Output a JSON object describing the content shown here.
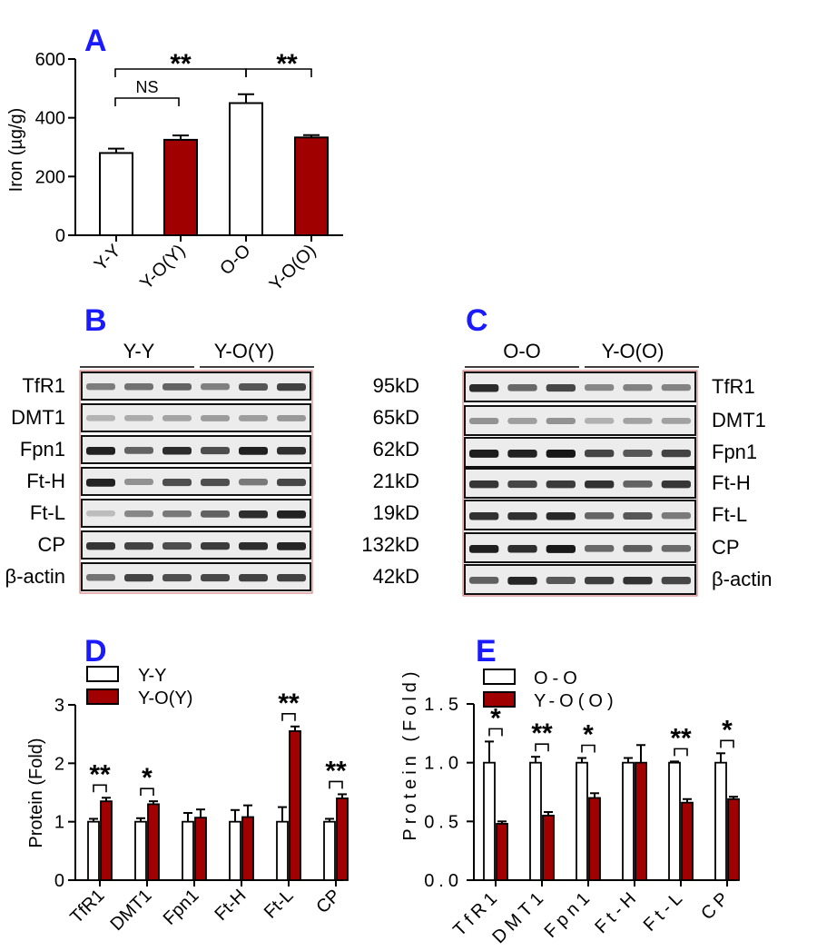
{
  "colors": {
    "accent": "#a00000",
    "panel_letter": "#1a1aff",
    "blot_border": "#cc6666"
  },
  "panelA": {
    "letter": "A",
    "ylabel": "Iron (µg/g)",
    "yticks": [
      "0",
      "200",
      "400",
      "600"
    ],
    "ns_label": "NS",
    "sig_left": "**",
    "sig_right": "**",
    "chart_data": {
      "type": "bar",
      "categories": [
        "Y-Y",
        "Y-O(Y)",
        "O-O",
        "Y-O(O)"
      ],
      "values": [
        280,
        325,
        450,
        333
      ],
      "errors": [
        15,
        15,
        30,
        8
      ],
      "ylim": [
        0,
        600
      ],
      "ylabel": "Iron (µg/g)"
    }
  },
  "panelB": {
    "letter": "B",
    "group1": "Y-Y",
    "group2": "Y-O(Y)",
    "rows": [
      "TfR1",
      "DMT1",
      "Fpn1",
      "Ft-H",
      "Ft-L",
      "CP",
      "β-actin"
    ],
    "weights": [
      "95kD",
      "65kD",
      "62kD",
      "21kD",
      "19kD",
      "132kD",
      "42kD"
    ]
  },
  "panelC": {
    "letter": "C",
    "group1": "O-O",
    "group2": "Y-O(O)",
    "rows": [
      "TfR1",
      "DMT1",
      "Fpn1",
      "Ft-H",
      "Ft-L",
      "CP",
      "β-actin"
    ]
  },
  "panelD": {
    "letter": "D",
    "ylabel": "Protein (Fold)",
    "yticks": [
      "0",
      "1",
      "2",
      "3"
    ],
    "legend": [
      "Y-Y",
      "Y-O(Y)"
    ],
    "stars": [
      "**",
      "*",
      "",
      "",
      "**",
      "**"
    ],
    "chart_data": {
      "type": "bar",
      "categories": [
        "TfR1",
        "DMT1",
        "Fpn1",
        "Ft-H",
        "Ft-L",
        "CP"
      ],
      "series": [
        {
          "name": "Y-Y",
          "values": [
            1.0,
            1.0,
            1.0,
            1.0,
            1.0,
            1.0
          ],
          "errors": [
            0.05,
            0.06,
            0.15,
            0.2,
            0.25,
            0.05
          ]
        },
        {
          "name": "Y-O(Y)",
          "values": [
            1.35,
            1.3,
            1.07,
            1.08,
            2.55,
            1.4
          ],
          "errors": [
            0.06,
            0.05,
            0.14,
            0.2,
            0.08,
            0.07
          ]
        }
      ],
      "ylim": [
        0,
        3
      ],
      "ylabel": "Protein (Fold)"
    }
  },
  "panelE": {
    "letter": "E",
    "ylabel": "Protein (Fold)",
    "yticks": [
      "0.0",
      "0.5",
      "1.0",
      "1.5"
    ],
    "legend": [
      "O-O",
      "Y-O(O)"
    ],
    "stars": [
      "*",
      "**",
      "*",
      "",
      "**",
      "*"
    ],
    "chart_data": {
      "type": "bar",
      "categories": [
        "TfR1",
        "DMT1",
        "Fpn1",
        "Ft-H",
        "Ft-L",
        "CP"
      ],
      "series": [
        {
          "name": "O-O",
          "values": [
            1.0,
            1.0,
            1.0,
            1.0,
            1.0,
            1.0
          ],
          "errors": [
            0.18,
            0.05,
            0.04,
            0.04,
            0.01,
            0.08
          ]
        },
        {
          "name": "Y-O(O)",
          "values": [
            0.48,
            0.55,
            0.7,
            1.0,
            0.66,
            0.69
          ],
          "errors": [
            0.02,
            0.03,
            0.04,
            0.15,
            0.03,
            0.02
          ]
        }
      ],
      "ylim": [
        0,
        1.5
      ],
      "ylabel": "Protein (Fold)"
    }
  }
}
